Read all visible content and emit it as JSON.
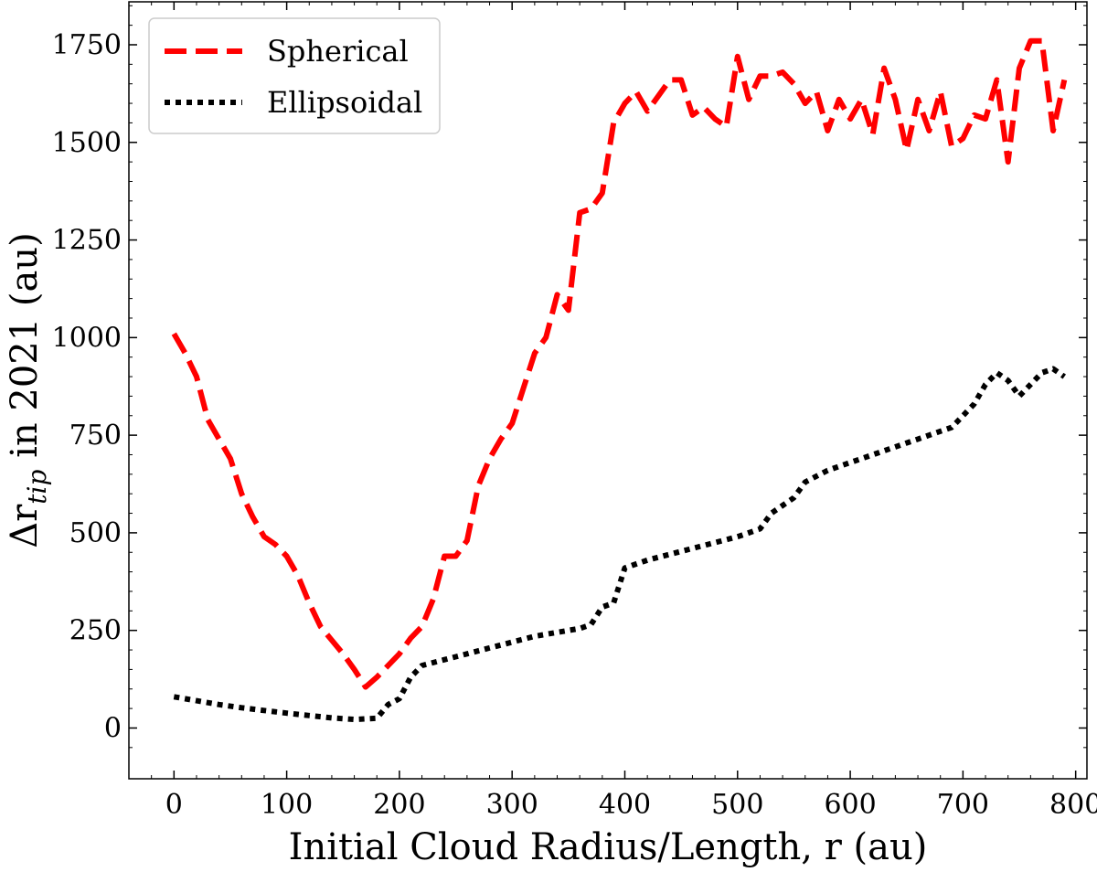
{
  "chart_data": {
    "type": "line",
    "title": "",
    "xlabel": "Initial Cloud Radius/Length, r (au)",
    "ylabel_prefix": "Δr",
    "ylabel_sub": "tip",
    "ylabel_suffix": " in 2021 (au)",
    "xlim": [
      -40,
      810
    ],
    "ylim": [
      -130,
      1860
    ],
    "xticks": [
      0,
      100,
      200,
      300,
      400,
      500,
      600,
      700,
      800
    ],
    "yticks": [
      0,
      250,
      500,
      750,
      1000,
      1250,
      1500,
      1750
    ],
    "legend_position": "top-left",
    "series": [
      {
        "name": "Spherical",
        "color": "#ff0000",
        "style": "dashed",
        "x": [
          0,
          10,
          20,
          30,
          40,
          50,
          60,
          70,
          80,
          90,
          100,
          110,
          120,
          130,
          140,
          150,
          160,
          170,
          180,
          190,
          200,
          210,
          220,
          230,
          240,
          250,
          260,
          270,
          280,
          290,
          300,
          310,
          320,
          330,
          340,
          350,
          360,
          370,
          380,
          390,
          400,
          410,
          420,
          430,
          440,
          450,
          460,
          470,
          480,
          490,
          500,
          510,
          520,
          530,
          540,
          550,
          560,
          570,
          580,
          590,
          600,
          610,
          620,
          630,
          640,
          650,
          660,
          670,
          680,
          690,
          700,
          710,
          720,
          730,
          740,
          750,
          760,
          770,
          780,
          790
        ],
        "values": [
          1010,
          960,
          900,
          790,
          740,
          690,
          600,
          540,
          490,
          470,
          440,
          390,
          320,
          260,
          225,
          190,
          150,
          105,
          130,
          160,
          190,
          230,
          260,
          330,
          440,
          440,
          480,
          620,
          690,
          740,
          780,
          870,
          960,
          1000,
          1110,
          1070,
          1320,
          1330,
          1370,
          1550,
          1600,
          1630,
          1580,
          1620,
          1660,
          1660,
          1570,
          1590,
          1560,
          1540,
          1720,
          1610,
          1670,
          1670,
          1680,
          1650,
          1600,
          1630,
          1530,
          1610,
          1560,
          1610,
          1520,
          1690,
          1610,
          1480,
          1610,
          1530,
          1630,
          1490,
          1510,
          1570,
          1560,
          1660,
          1450,
          1690,
          1760,
          1760,
          1530,
          1660
        ]
      },
      {
        "name": "Ellipsoidal",
        "color": "#000000",
        "style": "dotted",
        "x": [
          0,
          20,
          40,
          60,
          80,
          100,
          120,
          140,
          160,
          180,
          190,
          200,
          210,
          220,
          240,
          260,
          280,
          300,
          320,
          340,
          360,
          370,
          380,
          390,
          400,
          420,
          440,
          460,
          480,
          500,
          520,
          530,
          540,
          550,
          560,
          580,
          600,
          620,
          640,
          660,
          680,
          690,
          700,
          710,
          720,
          730,
          740,
          750,
          760,
          770,
          780,
          790
        ],
        "values": [
          80,
          70,
          60,
          52,
          45,
          38,
          32,
          26,
          22,
          25,
          60,
          75,
          130,
          160,
          175,
          190,
          205,
          220,
          235,
          245,
          255,
          265,
          310,
          320,
          410,
          430,
          445,
          460,
          475,
          490,
          510,
          550,
          570,
          590,
          630,
          660,
          680,
          700,
          720,
          740,
          760,
          770,
          800,
          830,
          880,
          910,
          890,
          850,
          880,
          910,
          920,
          900
        ]
      }
    ]
  }
}
